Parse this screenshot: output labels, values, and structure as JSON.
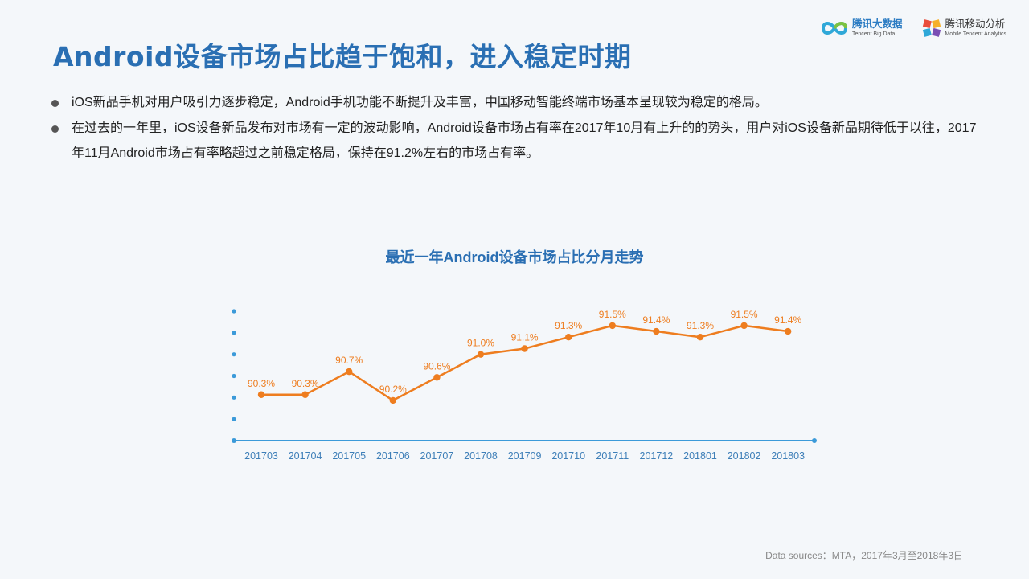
{
  "title": "Android设备市场占比趋于饱和，进入稳定时期",
  "logos": {
    "tencent_big_data": {
      "name": "腾讯大数据",
      "sub": "Tencent Big Data"
    },
    "tencent_mta": {
      "name": "腾讯移动分析",
      "sub": "Mobile Tencent Analytics"
    }
  },
  "bullets": [
    "iOS新品手机对用户吸引力逐步稳定，Android手机功能不断提升及丰富，中国移动智能终端市场基本呈现较为稳定的格局。",
    "在过去的一年里，iOS设备新品发布对市场有一定的波动影响，Android设备市场占有率在2017年10月有上升的的势头，用户对iOS设备新品期待低于以往，2017年11月Android市场占有率略超过之前稳定格局，保持在91.2%左右的市场占有率。"
  ],
  "chart_title": "最近一年Android设备市场占比分月走势",
  "source": "Data sources：MTA，2017年3月至2018年3日",
  "colors": {
    "title": "#2a6fb3",
    "line": "#ee7d1f",
    "axis": "#3b9ad9"
  },
  "chart_data": {
    "type": "line",
    "title": "最近一年Android设备市场占比分月走势",
    "categories": [
      "201703",
      "201704",
      "201705",
      "201706",
      "201707",
      "201708",
      "201709",
      "201710",
      "201711",
      "201712",
      "201801",
      "201802",
      "201803"
    ],
    "series": [
      {
        "values": [
          90.3,
          90.3,
          90.7,
          90.2,
          90.6,
          91.0,
          91.1,
          91.3,
          91.5,
          91.4,
          91.3,
          91.5,
          91.4
        ],
        "labels": [
          "90.3%",
          "90.3%",
          "90.7%",
          "90.2%",
          "90.6%",
          "91.0%",
          "91.1%",
          "91.3%",
          "91.5%",
          "91.4%",
          "91.3%",
          "91.5%",
          "91.4%"
        ]
      }
    ],
    "xlabel": "",
    "ylabel": "",
    "ylim": [
      89.5,
      91.75
    ],
    "grid": false,
    "legend": "none"
  }
}
